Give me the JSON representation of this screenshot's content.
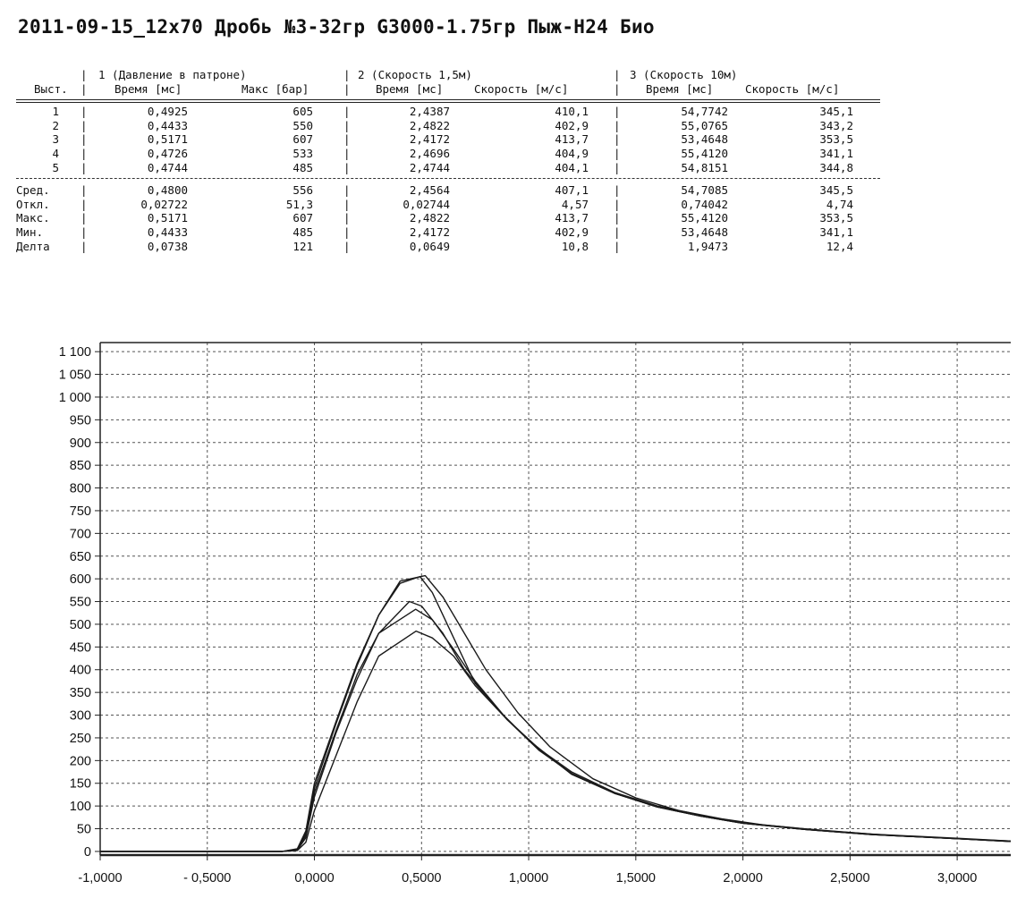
{
  "title": "2011-09-15_12x70 Дробь №3-32гр G3000-1.75гр Пыж-Н24 Био",
  "table": {
    "group_headers": [
      "1 (Давление в патроне)",
      "2 (Скорость 1,5м)",
      "3 (Скорость 10м)"
    ],
    "column_headers": [
      "Выст.",
      "Время [мс]",
      "Макс [бар]",
      "Время [мс]",
      "Скорость [м/с]",
      "Время [мс]",
      "Скорость [м/с]"
    ],
    "shots": [
      [
        "1",
        "0,4925",
        "605",
        "2,4387",
        "410,1",
        "54,7742",
        "345,1"
      ],
      [
        "2",
        "0,4433",
        "550",
        "2,4822",
        "402,9",
        "55,0765",
        "343,2"
      ],
      [
        "3",
        "0,5171",
        "607",
        "2,4172",
        "413,7",
        "53,4648",
        "353,5"
      ],
      [
        "4",
        "0,4726",
        "533",
        "2,4696",
        "404,9",
        "55,4120",
        "341,1"
      ],
      [
        "5",
        "0,4744",
        "485",
        "2,4744",
        "404,1",
        "54,8151",
        "344,8"
      ]
    ],
    "stats": [
      [
        "Сред.",
        "0,4800",
        "556",
        "2,4564",
        "407,1",
        "54,7085",
        "345,5"
      ],
      [
        "Откл.",
        "0,02722",
        "51,3",
        "0,02744",
        "4,57",
        "0,74042",
        "4,74"
      ],
      [
        "Макс.",
        "0,5171",
        "607",
        "2,4822",
        "413,7",
        "55,4120",
        "353,5"
      ],
      [
        "Мин.",
        "0,4433",
        "485",
        "2,4172",
        "402,9",
        "53,4648",
        "341,1"
      ],
      [
        "Делта",
        "0,0738",
        "121",
        "0,0649",
        "10,8",
        "1,9473",
        "12,4"
      ]
    ]
  },
  "chart_data": {
    "type": "line",
    "title": "",
    "xlabel": "",
    "ylabel": "",
    "xlim": [
      -1.0,
      3.25
    ],
    "ylim": [
      -8,
      1120
    ],
    "grid": true,
    "x_ticks": [
      -1.0,
      -0.5,
      0.0,
      0.5,
      1.0,
      1.5,
      2.0,
      2.5,
      3.0
    ],
    "x_tick_labels": [
      "-1,0000",
      "- 0,5000",
      "0,0000",
      "0,5000",
      "1,0000",
      "1,5000",
      "2,0000",
      "2,5000",
      "3,0000"
    ],
    "y_ticks": [
      0,
      50,
      100,
      150,
      200,
      250,
      300,
      350,
      400,
      450,
      500,
      550,
      600,
      650,
      700,
      750,
      800,
      850,
      900,
      950,
      1000,
      1050,
      1100
    ],
    "y_tick_labels": [
      "0",
      "50",
      "100",
      "150",
      "200",
      "250",
      "300",
      "350",
      "400",
      "450",
      "500",
      "550",
      "600",
      "650",
      "700",
      "750",
      "800",
      "850",
      "900",
      "950",
      "1 000",
      "1 050",
      "1 100"
    ],
    "series": [
      {
        "x": [
          -1.0,
          -0.15,
          -0.08,
          -0.04,
          0.0,
          0.1,
          0.2,
          0.3,
          0.4,
          0.4925,
          0.55,
          0.65,
          0.75,
          0.9,
          1.05,
          1.2,
          1.4,
          1.6,
          1.8,
          2.0,
          2.3,
          2.6,
          3.0,
          3.25
        ],
        "y": [
          0,
          0,
          5,
          40,
          140,
          280,
          410,
          520,
          590,
          605,
          570,
          470,
          370,
          290,
          225,
          170,
          128,
          98,
          78,
          62,
          48,
          37,
          28,
          22
        ]
      },
      {
        "x": [
          -1.0,
          -0.15,
          -0.08,
          -0.04,
          0.0,
          0.1,
          0.2,
          0.3,
          0.4433,
          0.5,
          0.6,
          0.7,
          0.85,
          1.0,
          1.2,
          1.4,
          1.6,
          1.8,
          2.0,
          2.3,
          2.6,
          3.0,
          3.25
        ],
        "y": [
          0,
          0,
          3,
          30,
          120,
          260,
          380,
          480,
          550,
          540,
          480,
          400,
          315,
          245,
          170,
          128,
          98,
          78,
          62,
          48,
          37,
          28,
          22
        ]
      },
      {
        "x": [
          -1.0,
          -0.15,
          -0.08,
          -0.04,
          0.0,
          0.1,
          0.2,
          0.3,
          0.4,
          0.5171,
          0.6,
          0.7,
          0.8,
          0.95,
          1.1,
          1.3,
          1.5,
          1.7,
          1.9,
          2.1,
          2.4,
          2.7,
          3.0,
          3.25
        ],
        "y": [
          0,
          0,
          6,
          45,
          150,
          285,
          415,
          520,
          595,
          607,
          560,
          480,
          400,
          305,
          230,
          160,
          118,
          90,
          72,
          58,
          45,
          35,
          28,
          23
        ]
      },
      {
        "x": [
          -1.0,
          -0.15,
          -0.08,
          -0.04,
          0.0,
          0.1,
          0.2,
          0.3,
          0.4726,
          0.55,
          0.65,
          0.75,
          0.9,
          1.05,
          1.2,
          1.4,
          1.6,
          1.8,
          2.0,
          2.3,
          2.6,
          3.0,
          3.25
        ],
        "y": [
          0,
          0,
          4,
          35,
          130,
          265,
          390,
          480,
          533,
          510,
          445,
          375,
          290,
          222,
          172,
          128,
          98,
          78,
          62,
          48,
          37,
          28,
          22
        ]
      },
      {
        "x": [
          -1.0,
          -0.15,
          -0.08,
          -0.04,
          0.0,
          0.1,
          0.2,
          0.3,
          0.4744,
          0.55,
          0.65,
          0.75,
          0.9,
          1.05,
          1.2,
          1.4,
          1.6,
          1.8,
          2.0,
          2.3,
          2.6,
          3.0,
          3.25
        ],
        "y": [
          0,
          0,
          2,
          20,
          90,
          210,
          330,
          430,
          485,
          470,
          430,
          365,
          290,
          225,
          175,
          130,
          100,
          80,
          63,
          49,
          38,
          29,
          23
        ]
      }
    ]
  }
}
